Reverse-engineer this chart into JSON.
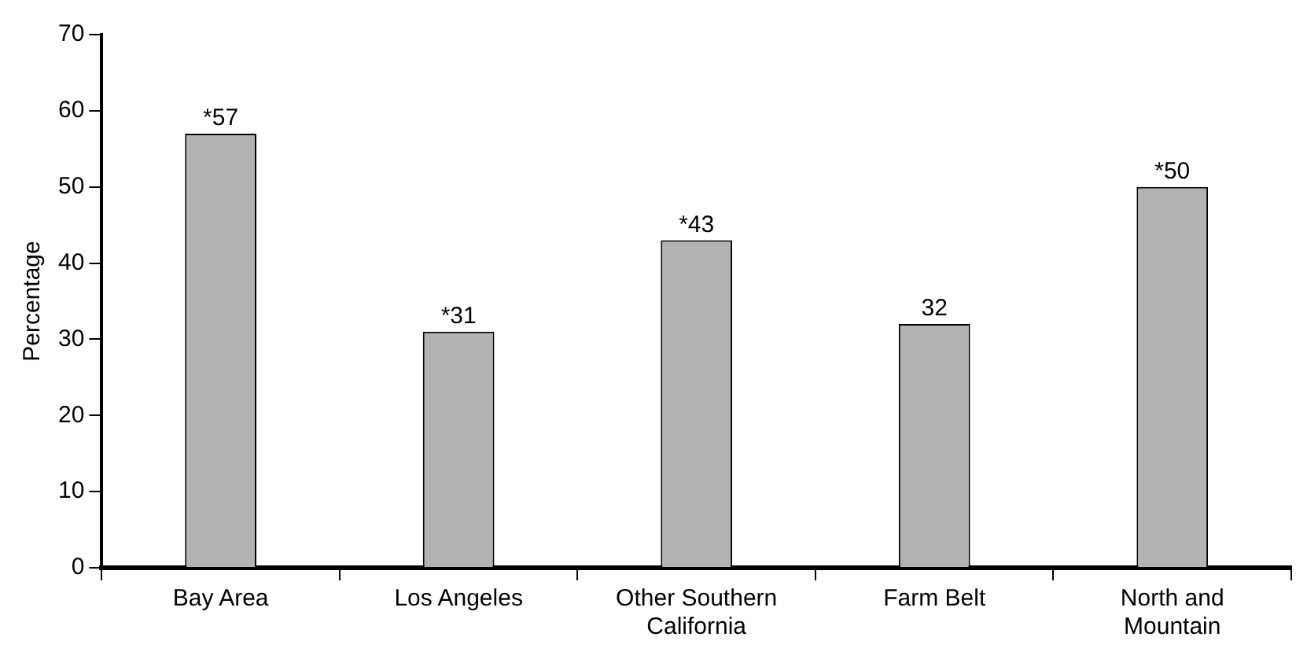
{
  "chart_data": {
    "type": "bar",
    "ylabel": "Percentage",
    "categories": [
      "Bay Area",
      "Los Angeles",
      "Other Southern California",
      "Farm Belt",
      "North and Mountain"
    ],
    "values": [
      57,
      31,
      43,
      32,
      50
    ],
    "value_labels": [
      "*57",
      "*31",
      "*43",
      "32",
      "*50"
    ],
    "color": "#b3b3b3",
    "ylim": [
      0,
      70
    ],
    "yticks": [
      0,
      10,
      20,
      30,
      40,
      50,
      60,
      70
    ],
    "grid": false,
    "legend": false
  }
}
